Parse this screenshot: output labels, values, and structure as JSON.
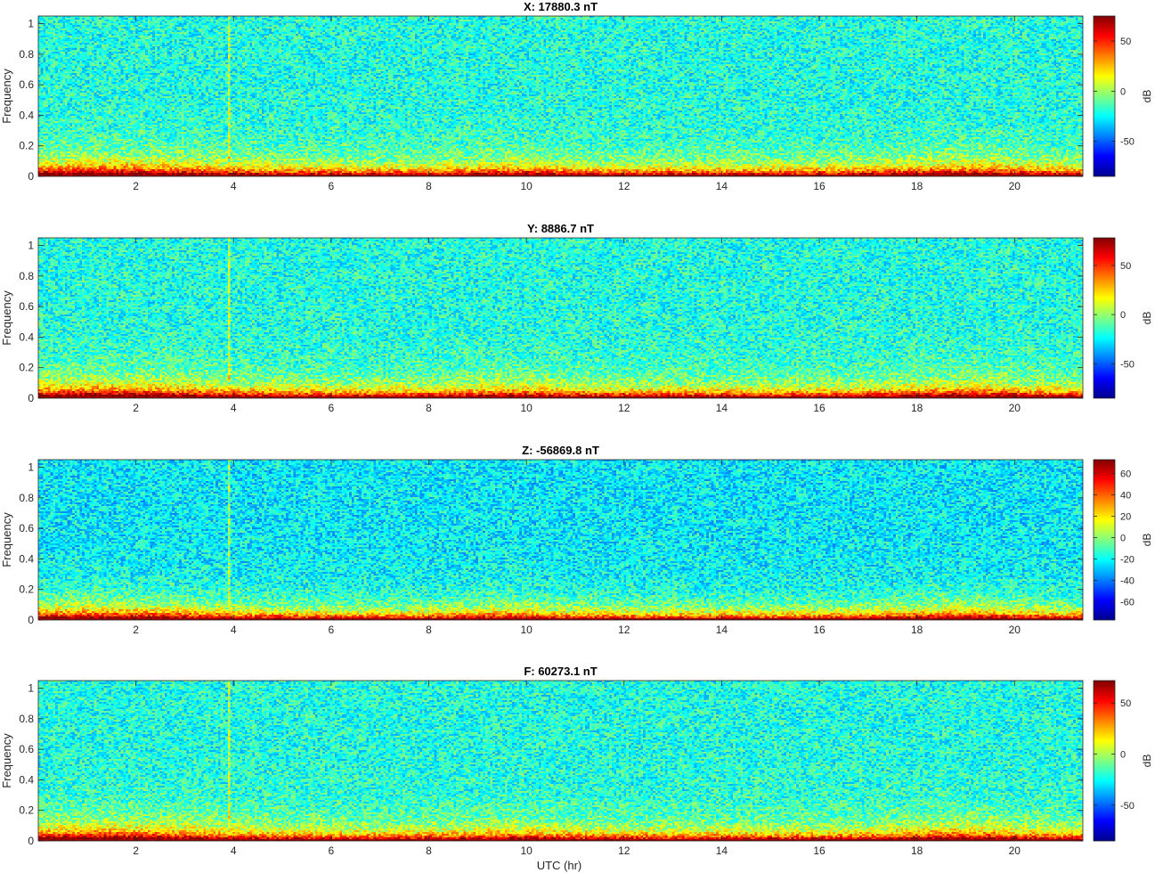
{
  "figure": {
    "xlabel": "UTC (hr)"
  },
  "chart_data": [
    {
      "type": "heatmap",
      "title": "X: 17880.3 nT",
      "xlabel": "",
      "ylabel": "Frequency",
      "xlim": [
        0,
        21.4
      ],
      "ylim": [
        0,
        1.05
      ],
      "xticks": [
        2,
        4,
        6,
        8,
        10,
        12,
        14,
        16,
        18,
        20
      ],
      "yticks": [
        0,
        0.2,
        0.4,
        0.6,
        0.8,
        1
      ],
      "colorbar": {
        "label": "dB",
        "clim": [
          -85,
          75
        ],
        "ticks": [
          50,
          0,
          -50
        ]
      },
      "colormap": "jet",
      "grid": false
    },
    {
      "type": "heatmap",
      "title": "Y: 8886.7 nT",
      "xlabel": "",
      "ylabel": "Frequency",
      "xlim": [
        0,
        21.4
      ],
      "ylim": [
        0,
        1.05
      ],
      "xticks": [
        2,
        4,
        6,
        8,
        10,
        12,
        14,
        16,
        18,
        20
      ],
      "yticks": [
        0,
        0.2,
        0.4,
        0.6,
        0.8,
        1
      ],
      "colorbar": {
        "label": "dB",
        "clim": [
          -85,
          78
        ],
        "ticks": [
          50,
          0,
          -50
        ]
      },
      "colormap": "jet",
      "grid": false
    },
    {
      "type": "heatmap",
      "title": "Z: -56869.8 nT",
      "xlabel": "",
      "ylabel": "Frequency",
      "xlim": [
        0,
        21.4
      ],
      "ylim": [
        0,
        1.05
      ],
      "xticks": [
        2,
        4,
        6,
        8,
        10,
        12,
        14,
        16,
        18,
        20
      ],
      "yticks": [
        0,
        0.2,
        0.4,
        0.6,
        0.8,
        1
      ],
      "colorbar": {
        "label": "dB",
        "clim": [
          -77,
          73
        ],
        "ticks": [
          60,
          40,
          20,
          0,
          -20,
          -40,
          -60
        ]
      },
      "colormap": "jet",
      "grid": false
    },
    {
      "type": "heatmap",
      "title": "F: 60273.1 nT",
      "xlabel": "UTC (hr)",
      "ylabel": "Frequency",
      "xlim": [
        0,
        21.4
      ],
      "ylim": [
        0,
        1.05
      ],
      "xticks": [
        2,
        4,
        6,
        8,
        10,
        12,
        14,
        16,
        18,
        20
      ],
      "yticks": [
        0,
        0.2,
        0.4,
        0.6,
        0.8,
        1
      ],
      "colorbar": {
        "label": "dB",
        "clim": [
          -85,
          72
        ],
        "ticks": [
          50,
          0,
          -50
        ]
      },
      "colormap": "jet",
      "grid": false
    }
  ]
}
